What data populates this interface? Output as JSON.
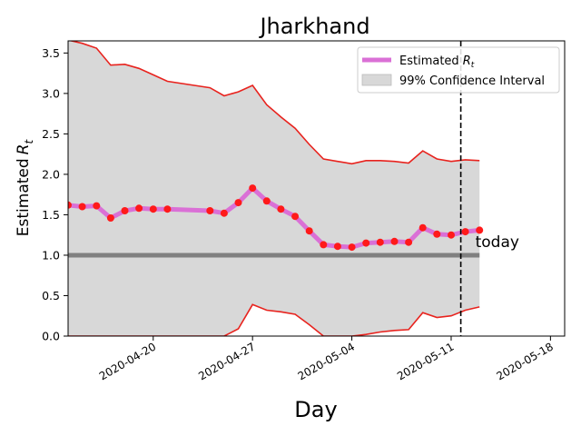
{
  "chart_data": {
    "type": "line",
    "title": "Jharkhand",
    "xlabel": "Day",
    "ylabel": "Estimated R_t",
    "ylabel_text": "Estimated",
    "ylabel_sub": "t",
    "x_ticks": [
      "2020-04-20",
      "2020-04-27",
      "2020-05-04",
      "2020-05-11",
      "2020-05-18"
    ],
    "y_ticks": [
      "0.0",
      "0.5",
      "1.0",
      "1.5",
      "2.0",
      "2.5",
      "3.0",
      "3.5"
    ],
    "xlim": [
      "2020-04-14",
      "2020-05-19"
    ],
    "ylim": [
      0,
      3.65
    ],
    "reference_line": {
      "y": 1.0,
      "color": "#808080"
    },
    "today": {
      "date": "2020-05-12",
      "label": "today"
    },
    "legend": {
      "position": "top-right",
      "entries": [
        {
          "label_text": "Estimated",
          "label_sub": "t",
          "color": "#da70d6",
          "kind": "line"
        },
        {
          "label": "99% Confidence Interval",
          "color": "#d8d8d8",
          "kind": "patch"
        }
      ]
    },
    "series": [
      {
        "name": "Estimated R_t",
        "color": "#da70d6",
        "marker_color": "#ff1a1a",
        "points": [
          {
            "x": "2020-04-14",
            "y": 1.62
          },
          {
            "x": "2020-04-15",
            "y": 1.6
          },
          {
            "x": "2020-04-16",
            "y": 1.61
          },
          {
            "x": "2020-04-17",
            "y": 1.46
          },
          {
            "x": "2020-04-18",
            "y": 1.55
          },
          {
            "x": "2020-04-19",
            "y": 1.58
          },
          {
            "x": "2020-04-20",
            "y": 1.57
          },
          {
            "x": "2020-04-21",
            "y": 1.57
          },
          {
            "x": "2020-04-24",
            "y": 1.55
          },
          {
            "x": "2020-04-25",
            "y": 1.52
          },
          {
            "x": "2020-04-26",
            "y": 1.65
          },
          {
            "x": "2020-04-27",
            "y": 1.83
          },
          {
            "x": "2020-04-28",
            "y": 1.67
          },
          {
            "x": "2020-04-29",
            "y": 1.57
          },
          {
            "x": "2020-04-30",
            "y": 1.48
          },
          {
            "x": "2020-05-01",
            "y": 1.3
          },
          {
            "x": "2020-05-02",
            "y": 1.13
          },
          {
            "x": "2020-05-03",
            "y": 1.11
          },
          {
            "x": "2020-05-04",
            "y": 1.1
          },
          {
            "x": "2020-05-05",
            "y": 1.15
          },
          {
            "x": "2020-05-06",
            "y": 1.16
          },
          {
            "x": "2020-05-07",
            "y": 1.17
          },
          {
            "x": "2020-05-08",
            "y": 1.16
          },
          {
            "x": "2020-05-09",
            "y": 1.34
          },
          {
            "x": "2020-05-10",
            "y": 1.26
          },
          {
            "x": "2020-05-11",
            "y": 1.25
          },
          {
            "x": "2020-05-12",
            "y": 1.29
          },
          {
            "x": "2020-05-13",
            "y": 1.31
          }
        ]
      },
      {
        "name": "Upper bound",
        "color": "#e8231e",
        "points": [
          {
            "x": "2020-04-14",
            "y": 3.66
          },
          {
            "x": "2020-04-15",
            "y": 3.62
          },
          {
            "x": "2020-04-16",
            "y": 3.56
          },
          {
            "x": "2020-04-17",
            "y": 3.35
          },
          {
            "x": "2020-04-18",
            "y": 3.36
          },
          {
            "x": "2020-04-19",
            "y": 3.31
          },
          {
            "x": "2020-04-20",
            "y": 3.23
          },
          {
            "x": "2020-04-21",
            "y": 3.15
          },
          {
            "x": "2020-04-24",
            "y": 3.07
          },
          {
            "x": "2020-04-25",
            "y": 2.97
          },
          {
            "x": "2020-04-26",
            "y": 3.02
          },
          {
            "x": "2020-04-27",
            "y": 3.1
          },
          {
            "x": "2020-04-28",
            "y": 2.86
          },
          {
            "x": "2020-04-29",
            "y": 2.71
          },
          {
            "x": "2020-04-30",
            "y": 2.57
          },
          {
            "x": "2020-05-01",
            "y": 2.37
          },
          {
            "x": "2020-05-02",
            "y": 2.19
          },
          {
            "x": "2020-05-03",
            "y": 2.16
          },
          {
            "x": "2020-05-04",
            "y": 2.13
          },
          {
            "x": "2020-05-05",
            "y": 2.17
          },
          {
            "x": "2020-05-06",
            "y": 2.17
          },
          {
            "x": "2020-05-07",
            "y": 2.16
          },
          {
            "x": "2020-05-08",
            "y": 2.14
          },
          {
            "x": "2020-05-09",
            "y": 2.29
          },
          {
            "x": "2020-05-10",
            "y": 2.19
          },
          {
            "x": "2020-05-11",
            "y": 2.16
          },
          {
            "x": "2020-05-12",
            "y": 2.18
          },
          {
            "x": "2020-05-13",
            "y": 2.17
          }
        ]
      },
      {
        "name": "Lower bound",
        "color": "#e8231e",
        "points": [
          {
            "x": "2020-04-14",
            "y": 0.0
          },
          {
            "x": "2020-04-15",
            "y": 0.0
          },
          {
            "x": "2020-04-16",
            "y": 0.0
          },
          {
            "x": "2020-04-17",
            "y": 0.0
          },
          {
            "x": "2020-04-18",
            "y": 0.0
          },
          {
            "x": "2020-04-19",
            "y": 0.0
          },
          {
            "x": "2020-04-20",
            "y": 0.0
          },
          {
            "x": "2020-04-21",
            "y": 0.0
          },
          {
            "x": "2020-04-24",
            "y": 0.0
          },
          {
            "x": "2020-04-25",
            "y": 0.0
          },
          {
            "x": "2020-04-26",
            "y": 0.09
          },
          {
            "x": "2020-04-27",
            "y": 0.39
          },
          {
            "x": "2020-04-28",
            "y": 0.32
          },
          {
            "x": "2020-04-29",
            "y": 0.3
          },
          {
            "x": "2020-04-30",
            "y": 0.27
          },
          {
            "x": "2020-05-01",
            "y": 0.14
          },
          {
            "x": "2020-05-02",
            "y": 0.0
          },
          {
            "x": "2020-05-03",
            "y": 0.0
          },
          {
            "x": "2020-05-04",
            "y": 0.0
          },
          {
            "x": "2020-05-05",
            "y": 0.02
          },
          {
            "x": "2020-05-06",
            "y": 0.05
          },
          {
            "x": "2020-05-07",
            "y": 0.07
          },
          {
            "x": "2020-05-08",
            "y": 0.08
          },
          {
            "x": "2020-05-09",
            "y": 0.29
          },
          {
            "x": "2020-05-10",
            "y": 0.23
          },
          {
            "x": "2020-05-11",
            "y": 0.25
          },
          {
            "x": "2020-05-12",
            "y": 0.32
          },
          {
            "x": "2020-05-13",
            "y": 0.36
          }
        ]
      }
    ],
    "band_color": "#d8d8d8",
    "grid": false
  }
}
